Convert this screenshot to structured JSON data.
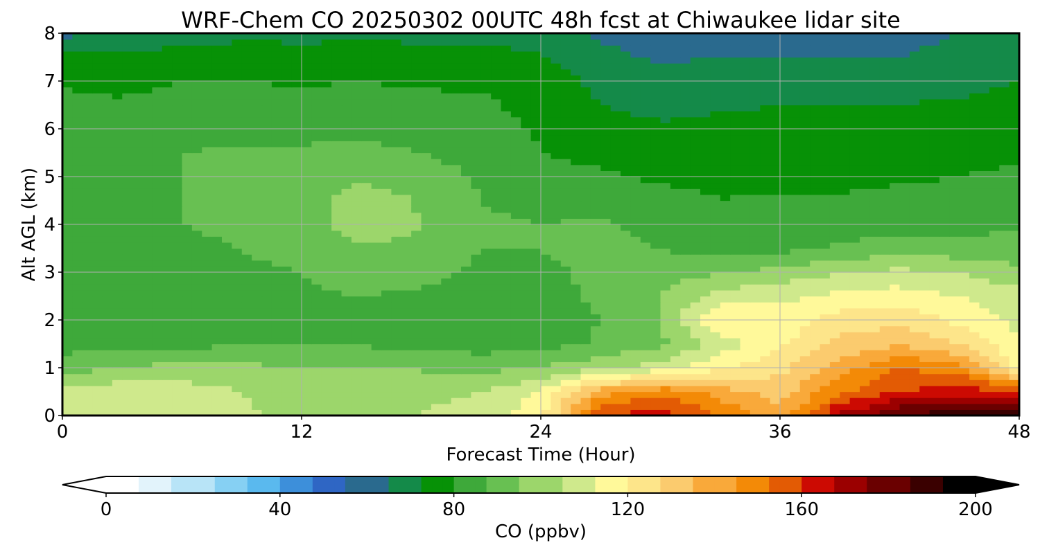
{
  "chart_data": {
    "type": "heatmap",
    "title": "WRF-Chem CO  20250302 00UTC 48h fcst at Chiwaukee lidar site",
    "xlabel": "Forecast Time (Hour)",
    "ylabel": "Alt AGL (km)",
    "xlim": [
      0,
      48
    ],
    "ylim": [
      0,
      8
    ],
    "x_ticks": [
      0,
      12,
      24,
      36,
      48
    ],
    "y_ticks": [
      0,
      1,
      2,
      3,
      4,
      5,
      6,
      7,
      8
    ],
    "grid": true,
    "x": [
      0,
      3,
      6,
      9,
      12,
      15,
      18,
      21,
      24,
      27,
      30,
      33,
      36,
      39,
      42,
      45,
      48
    ],
    "y": [
      0,
      0.5,
      1,
      1.5,
      2,
      2.5,
      3,
      3.5,
      4,
      4.5,
      5,
      5.5,
      6,
      6.5,
      7,
      7.5,
      8
    ],
    "values": [
      [
        110,
        112,
        111,
        106,
        100,
        103,
        104,
        108,
        118,
        160,
        165,
        152,
        138,
        170,
        185,
        190,
        192
      ],
      [
        106,
        109,
        108,
        104,
        98,
        101,
        102,
        104,
        112,
        140,
        150,
        140,
        132,
        150,
        160,
        165,
        158
      ],
      [
        92,
        97,
        98,
        98,
        96,
        97,
        95,
        94,
        96,
        102,
        108,
        118,
        126,
        140,
        152,
        148,
        118
      ],
      [
        85,
        86,
        86,
        87,
        87,
        87,
        86,
        84,
        85,
        89,
        94,
        108,
        118,
        130,
        135,
        128,
        112
      ],
      [
        84,
        85,
        85,
        86,
        86,
        86,
        85,
        83,
        84,
        88,
        96,
        120,
        116,
        124,
        125,
        118,
        110
      ],
      [
        84,
        85,
        85,
        86,
        87,
        88,
        87,
        85,
        86,
        89,
        96,
        108,
        110,
        114,
        116,
        112,
        108
      ],
      [
        84,
        85,
        86,
        87,
        88,
        91,
        90,
        87,
        87,
        89,
        92,
        95,
        99,
        103,
        106,
        104,
        98
      ],
      [
        84,
        85,
        87,
        88,
        90,
        95,
        93,
        88,
        88,
        90,
        88,
        85,
        86,
        89,
        92,
        91,
        90
      ],
      [
        85,
        86,
        88,
        89,
        91,
        102,
        96,
        89,
        88,
        89,
        85,
        82,
        83,
        84,
        85,
        86,
        87
      ],
      [
        85,
        86,
        88,
        90,
        92,
        101,
        95,
        88,
        86,
        84,
        82,
        80,
        81,
        81,
        82,
        83,
        84
      ],
      [
        85,
        86,
        88,
        90,
        91,
        94,
        92,
        87,
        83,
        81,
        79,
        79,
        78,
        78,
        79,
        80,
        81
      ],
      [
        84,
        86,
        88,
        89,
        89,
        90,
        88,
        85,
        80,
        78,
        77,
        77,
        76,
        76,
        77,
        78,
        79
      ],
      [
        84,
        84,
        86,
        86,
        86,
        86,
        85,
        83,
        79,
        75,
        73,
        74,
        75,
        75,
        75,
        76,
        77
      ],
      [
        82,
        81,
        83,
        83,
        83,
        83,
        82,
        81,
        78,
        72,
        70,
        71,
        72,
        72,
        72,
        73,
        74
      ],
      [
        79,
        78,
        80,
        80,
        79,
        80,
        79,
        79,
        77,
        70,
        67,
        68,
        69,
        69,
        69,
        70,
        72
      ],
      [
        75,
        74,
        76,
        76,
        75,
        76,
        75,
        75,
        73,
        66,
        63,
        64,
        64,
        64,
        64,
        65,
        68
      ],
      [
        62,
        64,
        67,
        70,
        70,
        70,
        70,
        70,
        68,
        63,
        60,
        59,
        60,
        61,
        63,
        64,
        65
      ]
    ],
    "colorbar": {
      "label": "CO  (ppbv)",
      "vmin": 0,
      "vmax": 200,
      "ticks": [
        0,
        40,
        80,
        120,
        160,
        200
      ],
      "extend": "both",
      "colors": [
        "#ffffff",
        "#e2f3fb",
        "#b8e4f7",
        "#86d0f3",
        "#5ab9ee",
        "#3d8fda",
        "#2f66c4",
        "#2a6a8e",
        "#148a49",
        "#079106",
        "#3ea93a",
        "#68c052",
        "#9cd66b",
        "#cfe98c",
        "#fff99a",
        "#fde58a",
        "#fbcb6e",
        "#f9a93a",
        "#f38a07",
        "#e35b04",
        "#cc0a02",
        "#9b0000",
        "#6a0000",
        "#3a0000",
        "#000000"
      ]
    }
  }
}
